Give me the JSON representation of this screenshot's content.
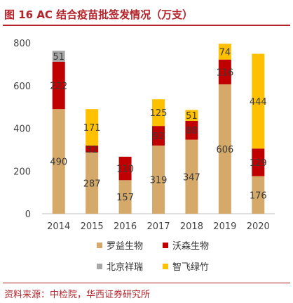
{
  "figure": {
    "title": "图 16  AC 结合疫苗批签发情况（万支）",
    "source": "资料来源：中检院，华西证券研究所"
  },
  "colors": {
    "accent": "#b4232a",
    "罗益生物": "#d4a96a",
    "沃森生物": "#c00000",
    "北京祥瑞": "#a6a6a6",
    "智飞绿竹": "#ffc000"
  },
  "chart_data": {
    "type": "bar",
    "stacked": true,
    "title": "AC 结合疫苗批签发情况（万支）",
    "categories": [
      "2014",
      "2015",
      "2016",
      "2017",
      "2018",
      "2019",
      "2020"
    ],
    "series": [
      {
        "name": "罗益生物",
        "values": [
          490,
          287,
          157,
          319,
          347,
          606,
          176
        ]
      },
      {
        "name": "沃森生物",
        "values": [
          222,
          32,
          110,
          92,
          88,
          116,
          129
        ]
      },
      {
        "name": "北京祥瑞",
        "values": [
          51,
          0,
          0,
          0,
          0,
          0,
          0
        ]
      },
      {
        "name": "智飞绿竹",
        "values": [
          0,
          171,
          0,
          125,
          51,
          74,
          444
        ]
      }
    ],
    "ylim": [
      0,
      800
    ],
    "yticks": [
      0,
      200,
      400,
      600,
      800
    ],
    "grid": false,
    "legend_position": "bottom"
  }
}
